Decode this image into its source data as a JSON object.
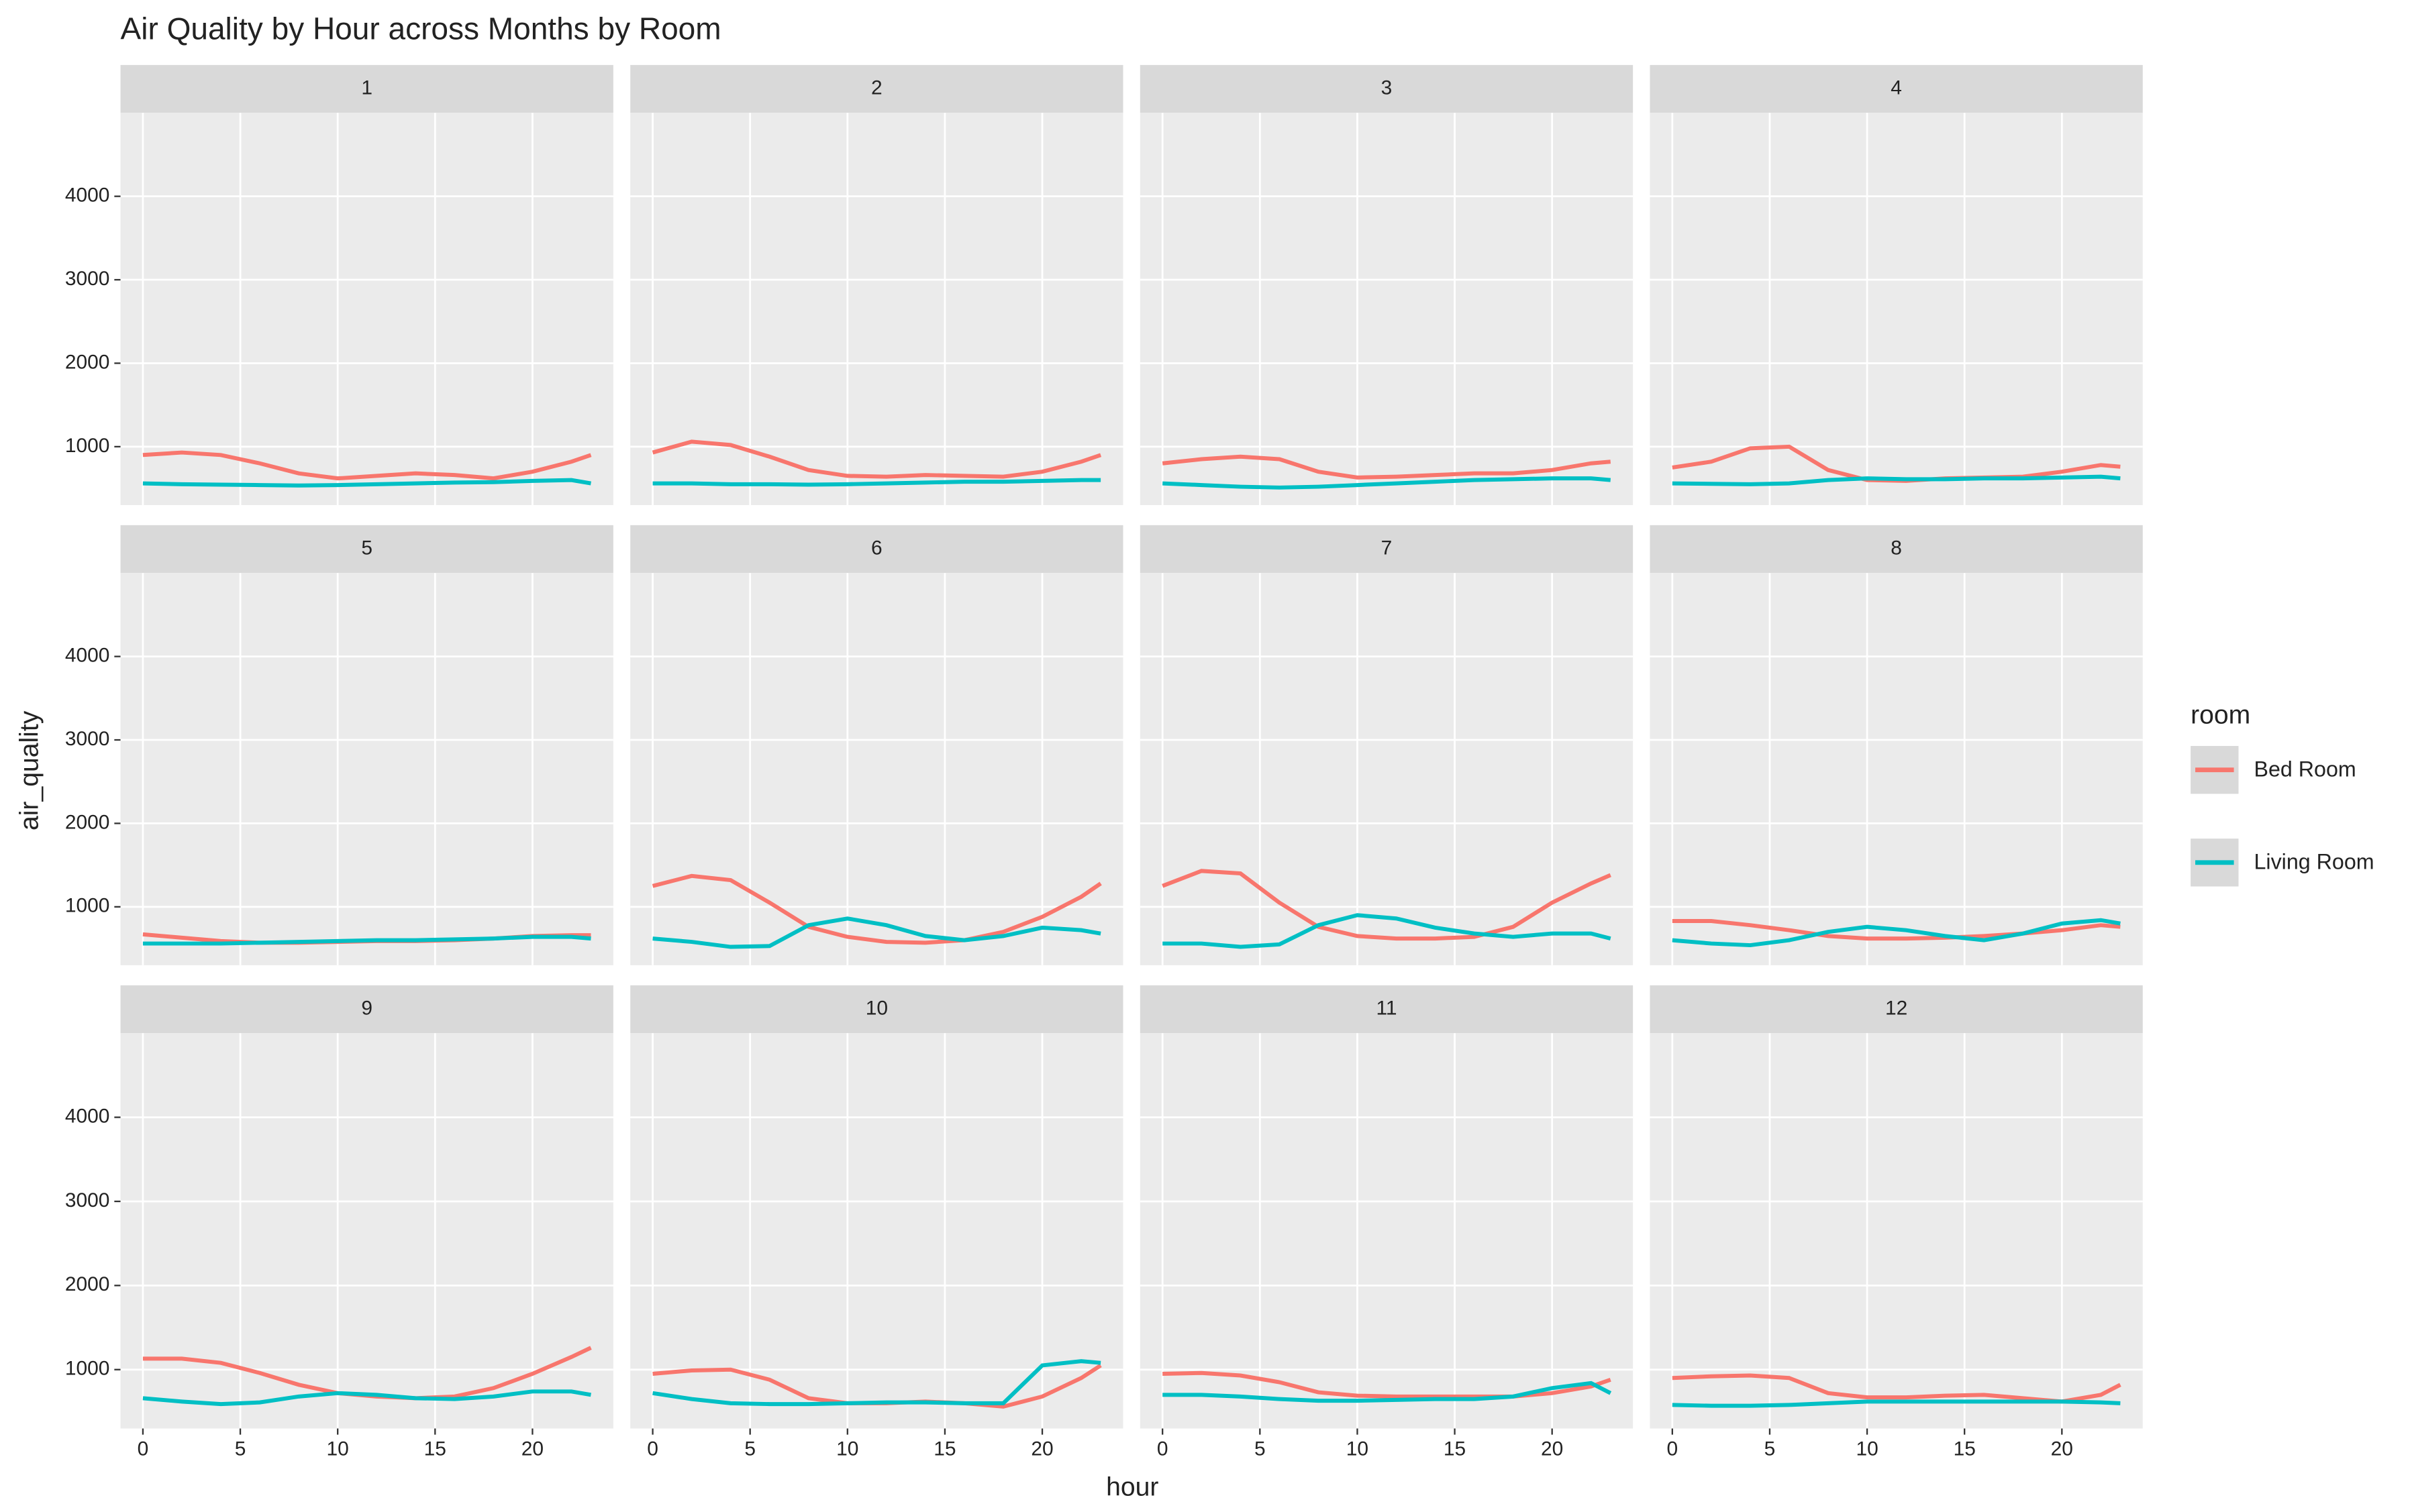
{
  "chart_data": {
    "type": "line",
    "title": "Air Quality by Hour across Months by Room",
    "x_label": "hour",
    "y_label": "air_quality",
    "legend_title": "room",
    "legend": "right",
    "grid": true,
    "x": [
      0,
      2,
      4,
      6,
      8,
      10,
      12,
      14,
      16,
      18,
      20,
      22,
      23
    ],
    "xlim": [
      -1.15,
      24.15
    ],
    "xticks": [
      0,
      5,
      10,
      15,
      20
    ],
    "ylim": [
      300,
      5000
    ],
    "yticks": [
      1000,
      2000,
      3000,
      4000
    ],
    "series": [
      {
        "name": "Bed Room",
        "color": "#F8766D"
      },
      {
        "name": "Living Room",
        "color": "#00BFC4"
      }
    ],
    "panels": [
      {
        "label": "1",
        "series": [
          {
            "values": [
              900,
              930,
              900,
              800,
              680,
              620,
              650,
              680,
              660,
              620,
              700,
              820,
              900
            ]
          },
          {
            "values": [
              560,
              550,
              545,
              540,
              535,
              540,
              550,
              560,
              570,
              575,
              590,
              600,
              560
            ]
          }
        ]
      },
      {
        "label": "2",
        "series": [
          {
            "values": [
              930,
              1060,
              1020,
              880,
              720,
              650,
              640,
              660,
              650,
              640,
              700,
              820,
              900
            ]
          },
          {
            "values": [
              560,
              560,
              550,
              550,
              545,
              550,
              560,
              570,
              580,
              580,
              590,
              600,
              600
            ]
          }
        ]
      },
      {
        "label": "3",
        "series": [
          {
            "values": [
              800,
              850,
              880,
              850,
              700,
              630,
              640,
              660,
              680,
              680,
              720,
              800,
              820
            ]
          },
          {
            "values": [
              560,
              540,
              520,
              510,
              520,
              540,
              560,
              580,
              600,
              610,
              620,
              620,
              600
            ]
          }
        ]
      },
      {
        "label": "4",
        "series": [
          {
            "values": [
              750,
              820,
              980,
              1000,
              720,
              600,
              590,
              620,
              630,
              640,
              700,
              780,
              760
            ]
          },
          {
            "values": [
              560,
              555,
              550,
              560,
              600,
              620,
              610,
              610,
              620,
              620,
              630,
              640,
              620
            ]
          }
        ]
      },
      {
        "label": "5",
        "series": [
          {
            "values": [
              670,
              630,
              590,
              570,
              570,
              580,
              590,
              590,
              600,
              620,
              650,
              660,
              660
            ]
          },
          {
            "values": [
              560,
              560,
              560,
              570,
              580,
              590,
              600,
              600,
              610,
              620,
              640,
              640,
              620
            ]
          }
        ]
      },
      {
        "label": "6",
        "series": [
          {
            "values": [
              1250,
              1370,
              1320,
              1050,
              760,
              640,
              580,
              570,
              600,
              700,
              880,
              1120,
              1280
            ]
          },
          {
            "values": [
              620,
              580,
              520,
              530,
              780,
              860,
              780,
              650,
              600,
              650,
              750,
              720,
              680
            ]
          }
        ]
      },
      {
        "label": "7",
        "series": [
          {
            "values": [
              1250,
              1430,
              1400,
              1050,
              760,
              650,
              620,
              620,
              640,
              760,
              1050,
              1280,
              1380
            ]
          },
          {
            "values": [
              560,
              560,
              520,
              550,
              780,
              900,
              860,
              750,
              680,
              640,
              680,
              680,
              620
            ]
          }
        ]
      },
      {
        "label": "8",
        "series": [
          {
            "values": [
              830,
              830,
              780,
              720,
              650,
              620,
              620,
              630,
              650,
              680,
              720,
              780,
              760
            ]
          },
          {
            "values": [
              600,
              560,
              540,
              600,
              700,
              760,
              720,
              650,
              600,
              680,
              800,
              840,
              800
            ]
          }
        ]
      },
      {
        "label": "9",
        "series": [
          {
            "values": [
              1130,
              1130,
              1080,
              960,
              820,
              720,
              680,
              660,
              680,
              780,
              950,
              1150,
              1260
            ]
          },
          {
            "values": [
              660,
              620,
              590,
              610,
              680,
              720,
              700,
              660,
              650,
              680,
              740,
              740,
              700
            ]
          }
        ]
      },
      {
        "label": "10",
        "series": [
          {
            "values": [
              950,
              990,
              1000,
              880,
              660,
              600,
              600,
              620,
              600,
              560,
              680,
              900,
              1050
            ]
          },
          {
            "values": [
              720,
              650,
              600,
              590,
              590,
              600,
              610,
              610,
              600,
              600,
              1050,
              1100,
              1080
            ]
          }
        ]
      },
      {
        "label": "11",
        "series": [
          {
            "values": [
              950,
              960,
              930,
              850,
              730,
              690,
              680,
              680,
              680,
              680,
              720,
              800,
              880
            ]
          },
          {
            "values": [
              700,
              700,
              680,
              650,
              630,
              630,
              640,
              650,
              650,
              680,
              780,
              840,
              720
            ]
          }
        ]
      },
      {
        "label": "12",
        "series": [
          {
            "values": [
              900,
              920,
              930,
              900,
              720,
              670,
              670,
              690,
              700,
              660,
              620,
              700,
              820
            ]
          },
          {
            "values": [
              580,
              570,
              570,
              580,
              600,
              620,
              620,
              620,
              620,
              620,
              620,
              610,
              600
            ]
          }
        ]
      }
    ]
  }
}
